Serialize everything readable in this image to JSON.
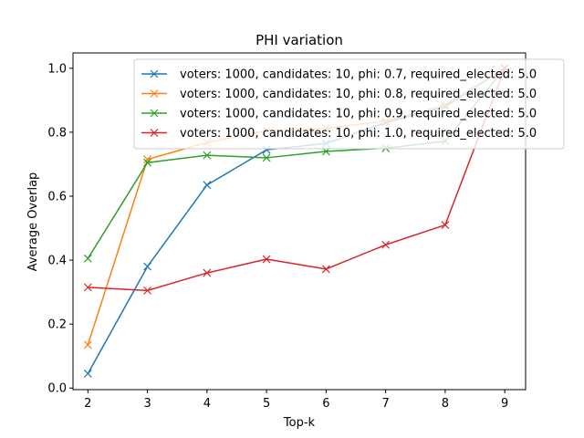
{
  "chart_data": {
    "type": "line",
    "title": "PHI variation",
    "xlabel": "Top-k",
    "ylabel": "Average Overlap",
    "xlim": [
      1.75,
      9.35
    ],
    "ylim": [
      -0.005,
      1.048
    ],
    "xticks": [
      2,
      3,
      4,
      5,
      6,
      7,
      8,
      9
    ],
    "yticks": [
      0.0,
      0.2,
      0.4,
      0.6,
      0.8,
      1.0
    ],
    "ytick_labels": [
      "0.0",
      "0.2",
      "0.4",
      "0.6",
      "0.8",
      "1.0"
    ],
    "grid": false,
    "legend_position": "top-right",
    "marker": "x",
    "x": [
      2,
      3,
      4,
      5,
      6,
      7,
      8,
      9
    ],
    "series": [
      {
        "name": "voters: 1000, candidates: 10, phi: 0.7, required_elected: 5.0",
        "color": "#1f77b4",
        "values": [
          0.045,
          0.38,
          0.635,
          0.745,
          0.765,
          0.83,
          0.88,
          1.0
        ]
      },
      {
        "name": "voters: 1000, candidates: 10, phi: 0.8, required_elected: 5.0",
        "color": "#ff7f0e",
        "values": [
          0.135,
          0.715,
          0.768,
          0.805,
          0.812,
          0.835,
          0.885,
          1.0
        ]
      },
      {
        "name": "voters: 1000, candidates: 10, phi: 0.9, required_elected: 5.0",
        "color": "#2ca02c",
        "values": [
          0.405,
          0.705,
          0.728,
          0.72,
          0.74,
          0.75,
          0.772,
          1.0
        ]
      },
      {
        "name": "voters: 1000, candidates: 10, phi: 1.0, required_elected: 5.0",
        "color": "#d62728",
        "values": [
          0.315,
          0.305,
          0.36,
          0.403,
          0.372,
          0.448,
          0.51,
          1.0
        ]
      }
    ]
  }
}
